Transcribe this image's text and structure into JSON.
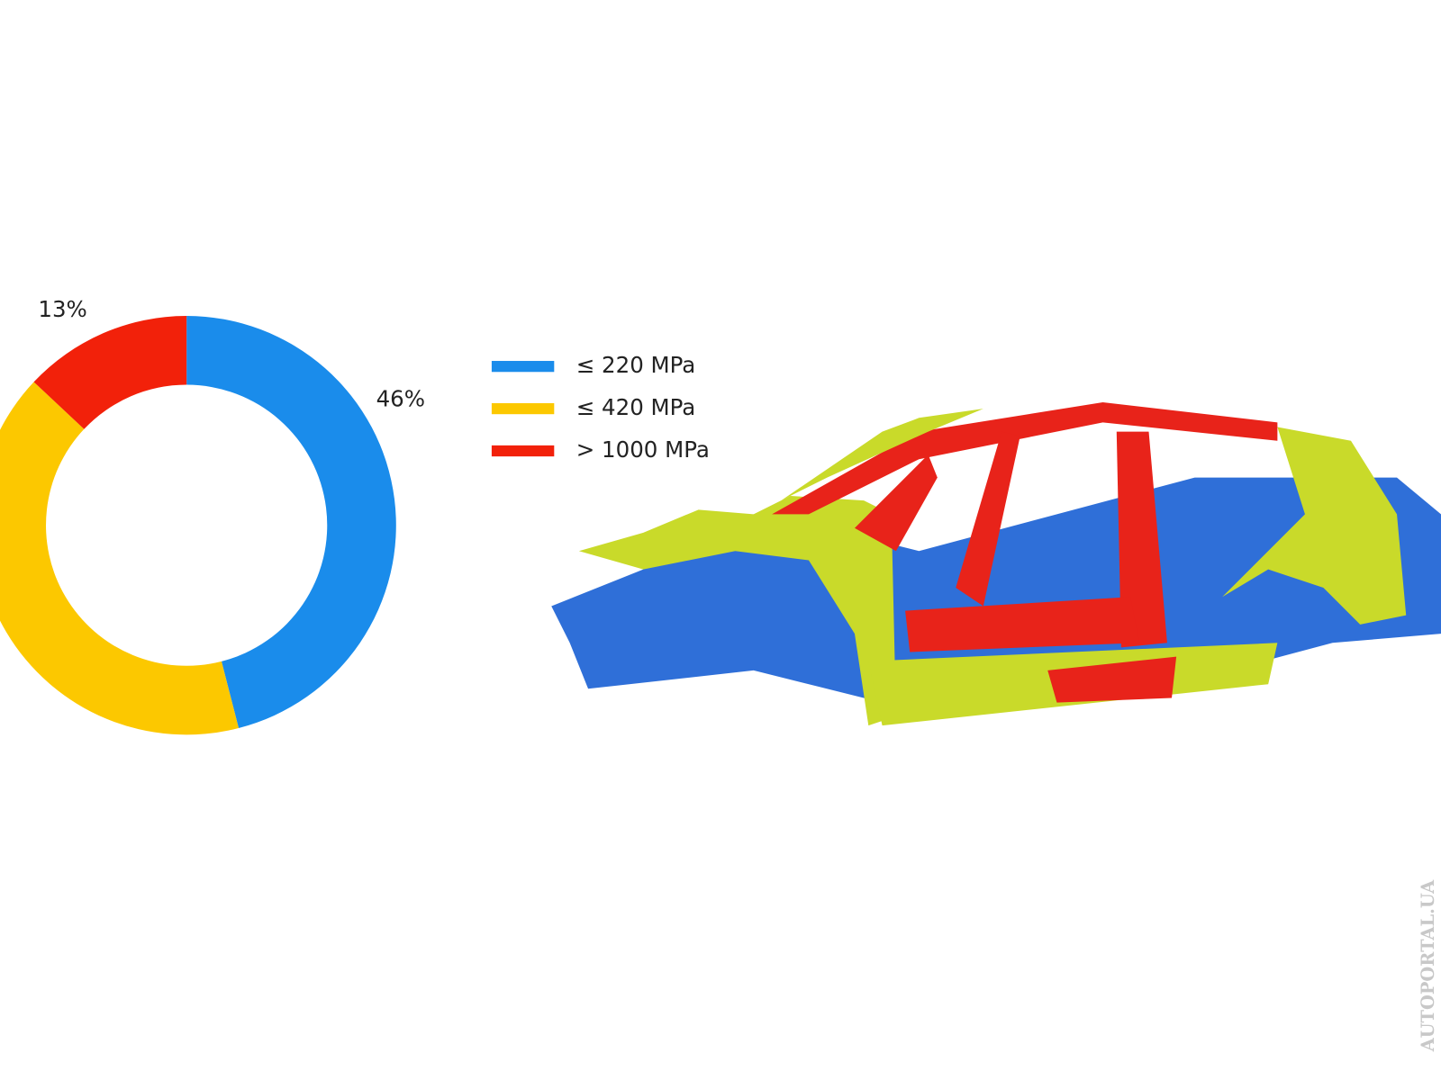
{
  "chart_data": {
    "type": "donut",
    "categories": [
      "≤ 220 MPa",
      "≤ 420 MPa",
      "> 1000 MPa"
    ],
    "values": [
      46,
      41,
      13
    ],
    "value_labels": [
      "46%",
      null,
      "13%"
    ],
    "colors": [
      "#1a8ceb",
      "#fcc800",
      "#f2210a"
    ]
  },
  "watermark": "AUTOPORTAL.UA"
}
